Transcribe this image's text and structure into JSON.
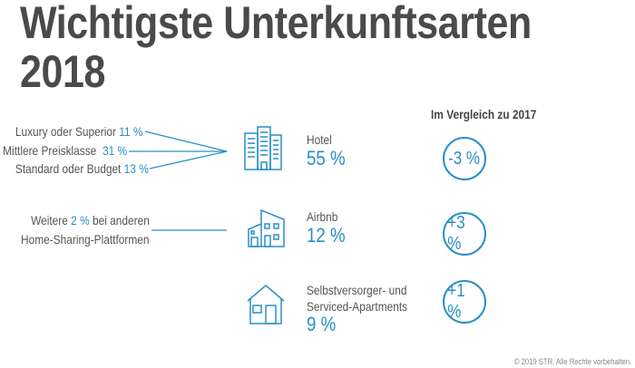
{
  "title_line1": "Wichtigste Unterkunftsarten",
  "title_line2": "2018",
  "comparison_header": "Im Vergleich zu 2017",
  "hotel": {
    "label": "Hotel",
    "value": "55 %",
    "change": "-3 %",
    "icon": "hotel-building-icon",
    "segments": [
      {
        "label": "Luxury oder Superior",
        "value": "11 %"
      },
      {
        "label": "Mittlere Preisklasse",
        "value": "31 %"
      },
      {
        "label": "Standard oder Budget",
        "value": "13 %"
      }
    ]
  },
  "airbnb": {
    "label": "Airbnb",
    "value": "12 %",
    "change": "+3 %",
    "icon": "modern-house-icon",
    "note_pre": "Weitere",
    "note_value": "2 %",
    "note_post": "bei anderen",
    "note_line2": "Home-Sharing-Plattformen"
  },
  "apartments": {
    "label_line1": "Selbstversorger- und",
    "label_line2": "Serviced-Apartments",
    "value": "9 %",
    "change": "+1 %",
    "icon": "house-icon"
  },
  "copyright": "© 2019 STR. Alle Rechte vorbehalten.",
  "colors": {
    "accent": "#2a8fc4",
    "title": "#4a4a4a",
    "text": "#555555"
  }
}
